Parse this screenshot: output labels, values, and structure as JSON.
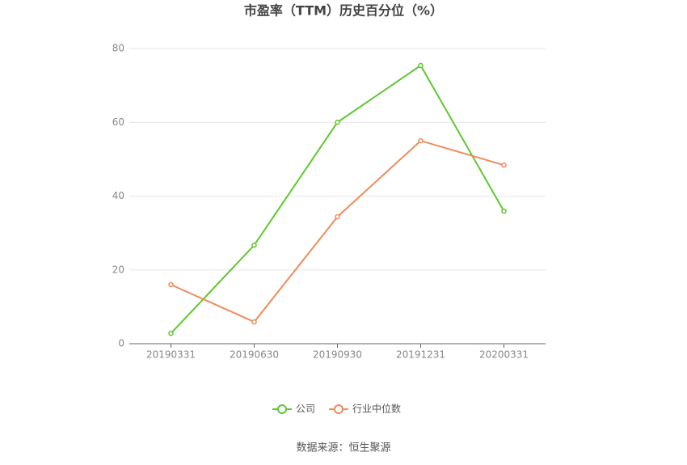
{
  "chart_data": {
    "type": "line",
    "title": "市盈率（TTM）历史百分位（%）",
    "categories": [
      "20190331",
      "20190630",
      "20190930",
      "20191231",
      "20200331"
    ],
    "series": [
      {
        "name": "公司",
        "color": "#5ec82f",
        "values": [
          2.8,
          26.7,
          60.0,
          75.4,
          35.9
        ]
      },
      {
        "name": "行业中位数",
        "color": "#f08a5a",
        "values": [
          16.0,
          5.9,
          34.4,
          55.0,
          48.4
        ]
      }
    ],
    "ylim": [
      0,
      80
    ],
    "yticks": [
      0,
      20,
      40,
      60,
      80
    ],
    "grid": true,
    "legend": "bottom",
    "source": "数据来源：恒生聚源"
  }
}
